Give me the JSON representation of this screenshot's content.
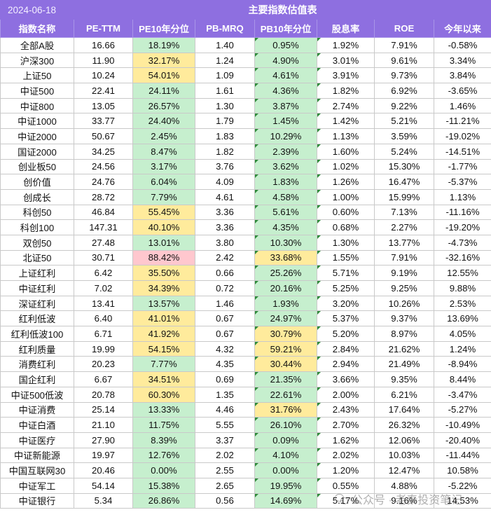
{
  "title": "主要指数估值表",
  "date": "2024-06-18",
  "headers": [
    "指数名称",
    "PE-TTM",
    "PE10年分位",
    "PB-MRQ",
    "PB10年分位",
    "股息率",
    "ROE",
    "今年以来"
  ],
  "colors": {
    "header_bg": "#8e6fe0",
    "green": "#c6efce",
    "yellow": "#ffeb9c",
    "red": "#ffc7ce"
  },
  "rows": [
    {
      "name": "全部A股",
      "pe": "16.66",
      "pe_pct": "18.19%",
      "pe_color": "green",
      "pb": "1.40",
      "pb_pct": "0.95%",
      "pb_color": "green",
      "div": "1.92%",
      "roe": "7.91%",
      "ytd": "-0.58%"
    },
    {
      "name": "沪深300",
      "pe": "11.90",
      "pe_pct": "32.17%",
      "pe_color": "yellow",
      "pb": "1.24",
      "pb_pct": "4.90%",
      "pb_color": "green",
      "div": "3.01%",
      "roe": "9.61%",
      "ytd": "3.34%"
    },
    {
      "name": "上证50",
      "pe": "10.24",
      "pe_pct": "54.01%",
      "pe_color": "yellow",
      "pb": "1.09",
      "pb_pct": "4.61%",
      "pb_color": "green",
      "div": "3.91%",
      "roe": "9.73%",
      "ytd": "3.84%"
    },
    {
      "name": "中证500",
      "pe": "22.41",
      "pe_pct": "24.11%",
      "pe_color": "green",
      "pb": "1.61",
      "pb_pct": "4.36%",
      "pb_color": "green",
      "div": "1.82%",
      "roe": "6.92%",
      "ytd": "-3.65%"
    },
    {
      "name": "中证800",
      "pe": "13.05",
      "pe_pct": "26.57%",
      "pe_color": "green",
      "pb": "1.30",
      "pb_pct": "3.87%",
      "pb_color": "green",
      "div": "2.74%",
      "roe": "9.22%",
      "ytd": "1.46%"
    },
    {
      "name": "中证1000",
      "pe": "33.77",
      "pe_pct": "24.40%",
      "pe_color": "green",
      "pb": "1.79",
      "pb_pct": "1.45%",
      "pb_color": "green",
      "div": "1.42%",
      "roe": "5.21%",
      "ytd": "-11.21%"
    },
    {
      "name": "中证2000",
      "pe": "50.67",
      "pe_pct": "2.45%",
      "pe_color": "green",
      "pb": "1.83",
      "pb_pct": "10.29%",
      "pb_color": "green",
      "div": "1.13%",
      "roe": "3.59%",
      "ytd": "-19.02%"
    },
    {
      "name": "国证2000",
      "pe": "34.25",
      "pe_pct": "8.47%",
      "pe_color": "green",
      "pb": "1.82",
      "pb_pct": "2.39%",
      "pb_color": "green",
      "div": "1.60%",
      "roe": "5.24%",
      "ytd": "-14.51%"
    },
    {
      "name": "创业板50",
      "pe": "24.56",
      "pe_pct": "3.17%",
      "pe_color": "green",
      "pb": "3.76",
      "pb_pct": "3.62%",
      "pb_color": "green",
      "div": "1.02%",
      "roe": "15.30%",
      "ytd": "-1.77%"
    },
    {
      "name": "创价值",
      "pe": "24.76",
      "pe_pct": "6.04%",
      "pe_color": "green",
      "pb": "4.09",
      "pb_pct": "1.83%",
      "pb_color": "green",
      "div": "1.26%",
      "roe": "16.47%",
      "ytd": "-5.37%"
    },
    {
      "name": "创成长",
      "pe": "28.72",
      "pe_pct": "7.79%",
      "pe_color": "green",
      "pb": "4.61",
      "pb_pct": "4.58%",
      "pb_color": "green",
      "div": "1.00%",
      "roe": "15.99%",
      "ytd": "1.13%"
    },
    {
      "name": "科创50",
      "pe": "46.84",
      "pe_pct": "55.45%",
      "pe_color": "yellow",
      "pb": "3.36",
      "pb_pct": "5.61%",
      "pb_color": "green",
      "div": "0.60%",
      "roe": "7.13%",
      "ytd": "-11.16%"
    },
    {
      "name": "科创100",
      "pe": "147.31",
      "pe_pct": "40.10%",
      "pe_color": "yellow",
      "pb": "3.36",
      "pb_pct": "4.35%",
      "pb_color": "green",
      "div": "0.68%",
      "roe": "2.27%",
      "ytd": "-19.20%"
    },
    {
      "name": "双创50",
      "pe": "27.48",
      "pe_pct": "13.01%",
      "pe_color": "green",
      "pb": "3.80",
      "pb_pct": "10.30%",
      "pb_color": "green",
      "div": "1.30%",
      "roe": "13.77%",
      "ytd": "-4.73%"
    },
    {
      "name": "北证50",
      "pe": "30.71",
      "pe_pct": "88.42%",
      "pe_color": "red",
      "pb": "2.42",
      "pb_pct": "33.68%",
      "pb_color": "yellow",
      "div": "1.55%",
      "roe": "7.91%",
      "ytd": "-32.16%"
    },
    {
      "name": "上证红利",
      "pe": "6.42",
      "pe_pct": "35.50%",
      "pe_color": "yellow",
      "pb": "0.66",
      "pb_pct": "25.26%",
      "pb_color": "green",
      "div": "5.71%",
      "roe": "9.19%",
      "ytd": "12.55%"
    },
    {
      "name": "中证红利",
      "pe": "7.02",
      "pe_pct": "34.39%",
      "pe_color": "yellow",
      "pb": "0.72",
      "pb_pct": "20.16%",
      "pb_color": "green",
      "div": "5.25%",
      "roe": "9.25%",
      "ytd": "9.88%"
    },
    {
      "name": "深证红利",
      "pe": "13.41",
      "pe_pct": "13.57%",
      "pe_color": "green",
      "pb": "1.46",
      "pb_pct": "1.93%",
      "pb_color": "green",
      "div": "3.20%",
      "roe": "10.26%",
      "ytd": "2.53%"
    },
    {
      "name": "红利低波",
      "pe": "6.40",
      "pe_pct": "41.01%",
      "pe_color": "yellow",
      "pb": "0.67",
      "pb_pct": "24.97%",
      "pb_color": "green",
      "div": "5.37%",
      "roe": "9.37%",
      "ytd": "13.69%"
    },
    {
      "name": "红利低波100",
      "pe": "6.71",
      "pe_pct": "41.92%",
      "pe_color": "yellow",
      "pb": "0.67",
      "pb_pct": "30.79%",
      "pb_color": "yellow",
      "div": "5.20%",
      "roe": "8.97%",
      "ytd": "4.05%"
    },
    {
      "name": "红利质量",
      "pe": "19.99",
      "pe_pct": "54.15%",
      "pe_color": "yellow",
      "pb": "4.32",
      "pb_pct": "59.21%",
      "pb_color": "yellow",
      "div": "2.84%",
      "roe": "21.62%",
      "ytd": "1.24%"
    },
    {
      "name": "消费红利",
      "pe": "20.23",
      "pe_pct": "7.77%",
      "pe_color": "green",
      "pb": "4.35",
      "pb_pct": "30.44%",
      "pb_color": "yellow",
      "div": "2.94%",
      "roe": "21.49%",
      "ytd": "-8.94%"
    },
    {
      "name": "国企红利",
      "pe": "6.67",
      "pe_pct": "34.51%",
      "pe_color": "yellow",
      "pb": "0.69",
      "pb_pct": "21.35%",
      "pb_color": "green",
      "div": "3.66%",
      "roe": "9.35%",
      "ytd": "8.44%"
    },
    {
      "name": "中证500低波",
      "pe": "20.78",
      "pe_pct": "60.30%",
      "pe_color": "yellow",
      "pb": "1.35",
      "pb_pct": "22.61%",
      "pb_color": "green",
      "div": "2.00%",
      "roe": "6.21%",
      "ytd": "-3.47%"
    },
    {
      "name": "中证消费",
      "pe": "25.14",
      "pe_pct": "13.33%",
      "pe_color": "green",
      "pb": "4.46",
      "pb_pct": "31.76%",
      "pb_color": "yellow",
      "div": "2.43%",
      "roe": "17.64%",
      "ytd": "-5.27%"
    },
    {
      "name": "中证白酒",
      "pe": "21.10",
      "pe_pct": "11.75%",
      "pe_color": "green",
      "pb": "5.55",
      "pb_pct": "26.10%",
      "pb_color": "green",
      "div": "2.70%",
      "roe": "26.32%",
      "ytd": "-10.49%"
    },
    {
      "name": "中证医疗",
      "pe": "27.90",
      "pe_pct": "8.39%",
      "pe_color": "green",
      "pb": "3.37",
      "pb_pct": "0.09%",
      "pb_color": "green",
      "div": "1.62%",
      "roe": "12.06%",
      "ytd": "-20.40%"
    },
    {
      "name": "中证新能源",
      "pe": "19.97",
      "pe_pct": "12.76%",
      "pe_color": "green",
      "pb": "2.02",
      "pb_pct": "4.10%",
      "pb_color": "green",
      "div": "2.02%",
      "roe": "10.03%",
      "ytd": "-11.44%"
    },
    {
      "name": "中国互联网30",
      "pe": "20.46",
      "pe_pct": "0.00%",
      "pe_color": "green",
      "pb": "2.55",
      "pb_pct": "0.00%",
      "pb_color": "green",
      "div": "1.20%",
      "roe": "12.47%",
      "ytd": "10.58%"
    },
    {
      "name": "中证军工",
      "pe": "54.14",
      "pe_pct": "15.38%",
      "pe_color": "green",
      "pb": "2.65",
      "pb_pct": "19.95%",
      "pb_color": "green",
      "div": "0.55%",
      "roe": "4.88%",
      "ytd": "-5.22%"
    },
    {
      "name": "中证银行",
      "pe": "5.34",
      "pe_pct": "26.86%",
      "pe_color": "green",
      "pb": "0.56",
      "pb_pct": "14.69%",
      "pb_color": "green",
      "div": "5.17%",
      "roe": "9.16%",
      "ytd": "14.53%"
    }
  ],
  "watermark": "公众号 · 老秦投资笔记"
}
